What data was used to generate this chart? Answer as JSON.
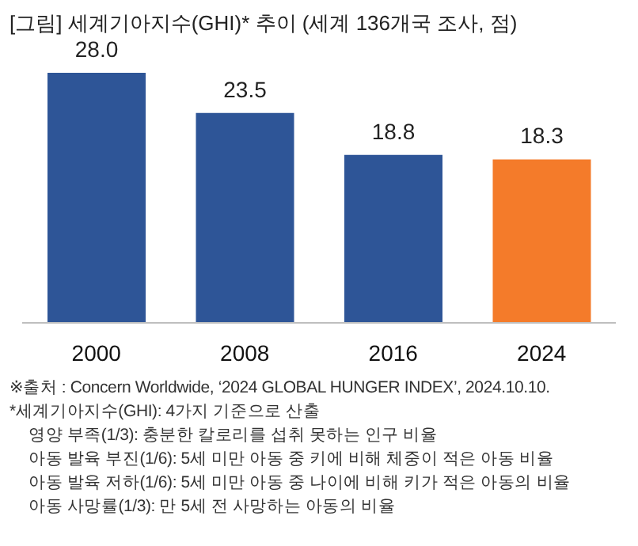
{
  "chart_data": {
    "type": "bar",
    "title": "[그림] 세계기아지수(GHI)* 추이 (세계 136개국 조사, 점)",
    "categories": [
      "2000",
      "2008",
      "2016",
      "2024"
    ],
    "values": [
      28.0,
      23.5,
      18.8,
      18.3
    ],
    "value_labels": [
      "28.0",
      "23.5",
      "18.8",
      "18.3"
    ],
    "colors": [
      "#2e5597",
      "#2e5597",
      "#2e5597",
      "#f47b2a"
    ],
    "annotations": [
      "※출처 : Concern Worldwide, ‘2024 GLOBAL HUNGER INDEX’, 2024.10.10.",
      "*세계기아지수(GHI): 4가지 기준으로 산출",
      "영양 부족(1/3): 충분한 칼로리를 섭취 못하는 인구 비율",
      "아동 발육 부진(1/6): 5세 미만 아동 중 키에 비해 체중이 적은 아동 비율",
      "아동 발육 저하(1/6): 5세 미만 아동 중 나이에 비해 키가 적은 아동의 비율",
      "아동 사망률(1/3): 만 5세 전 사망하는 아동의 비율"
    ]
  }
}
